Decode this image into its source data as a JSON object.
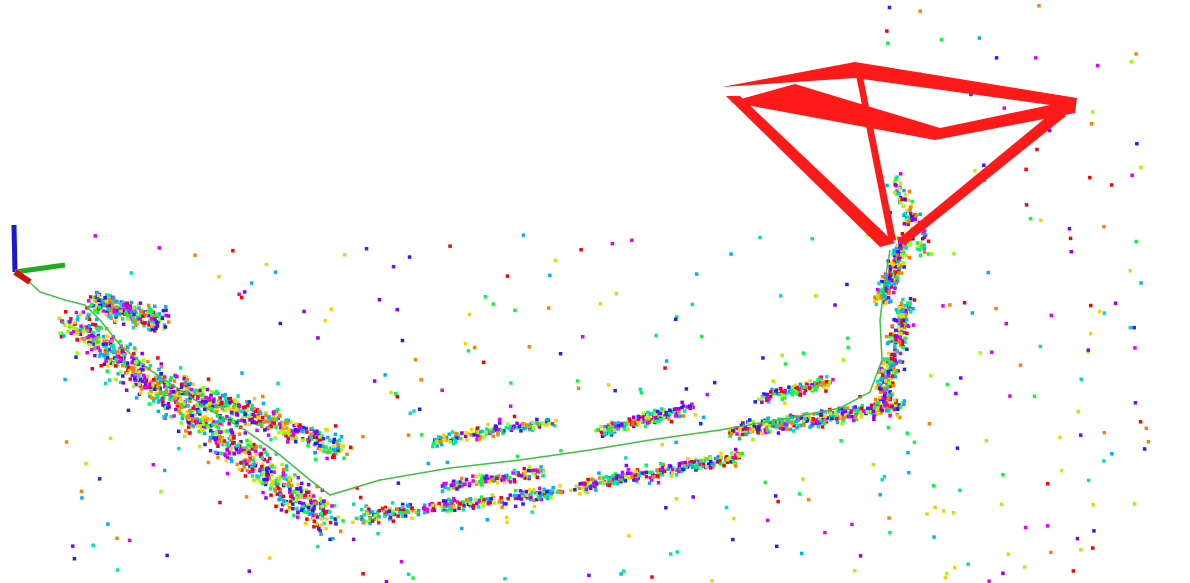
{
  "scene": {
    "background": "#ffffff",
    "camera_frustum_color": "#ff1a1a",
    "trajectory_color": "#3fbf3f",
    "axis_colors": {
      "x": "#22aa22",
      "y": "#1a1acc",
      "z": "#cc1111"
    },
    "point_palette": [
      "#ff0000",
      "#ff8000",
      "#ffd000",
      "#9cff00",
      "#00ff40",
      "#00e0c0",
      "#00b0ff",
      "#2020ff",
      "#8a00ff",
      "#e000ff"
    ]
  }
}
